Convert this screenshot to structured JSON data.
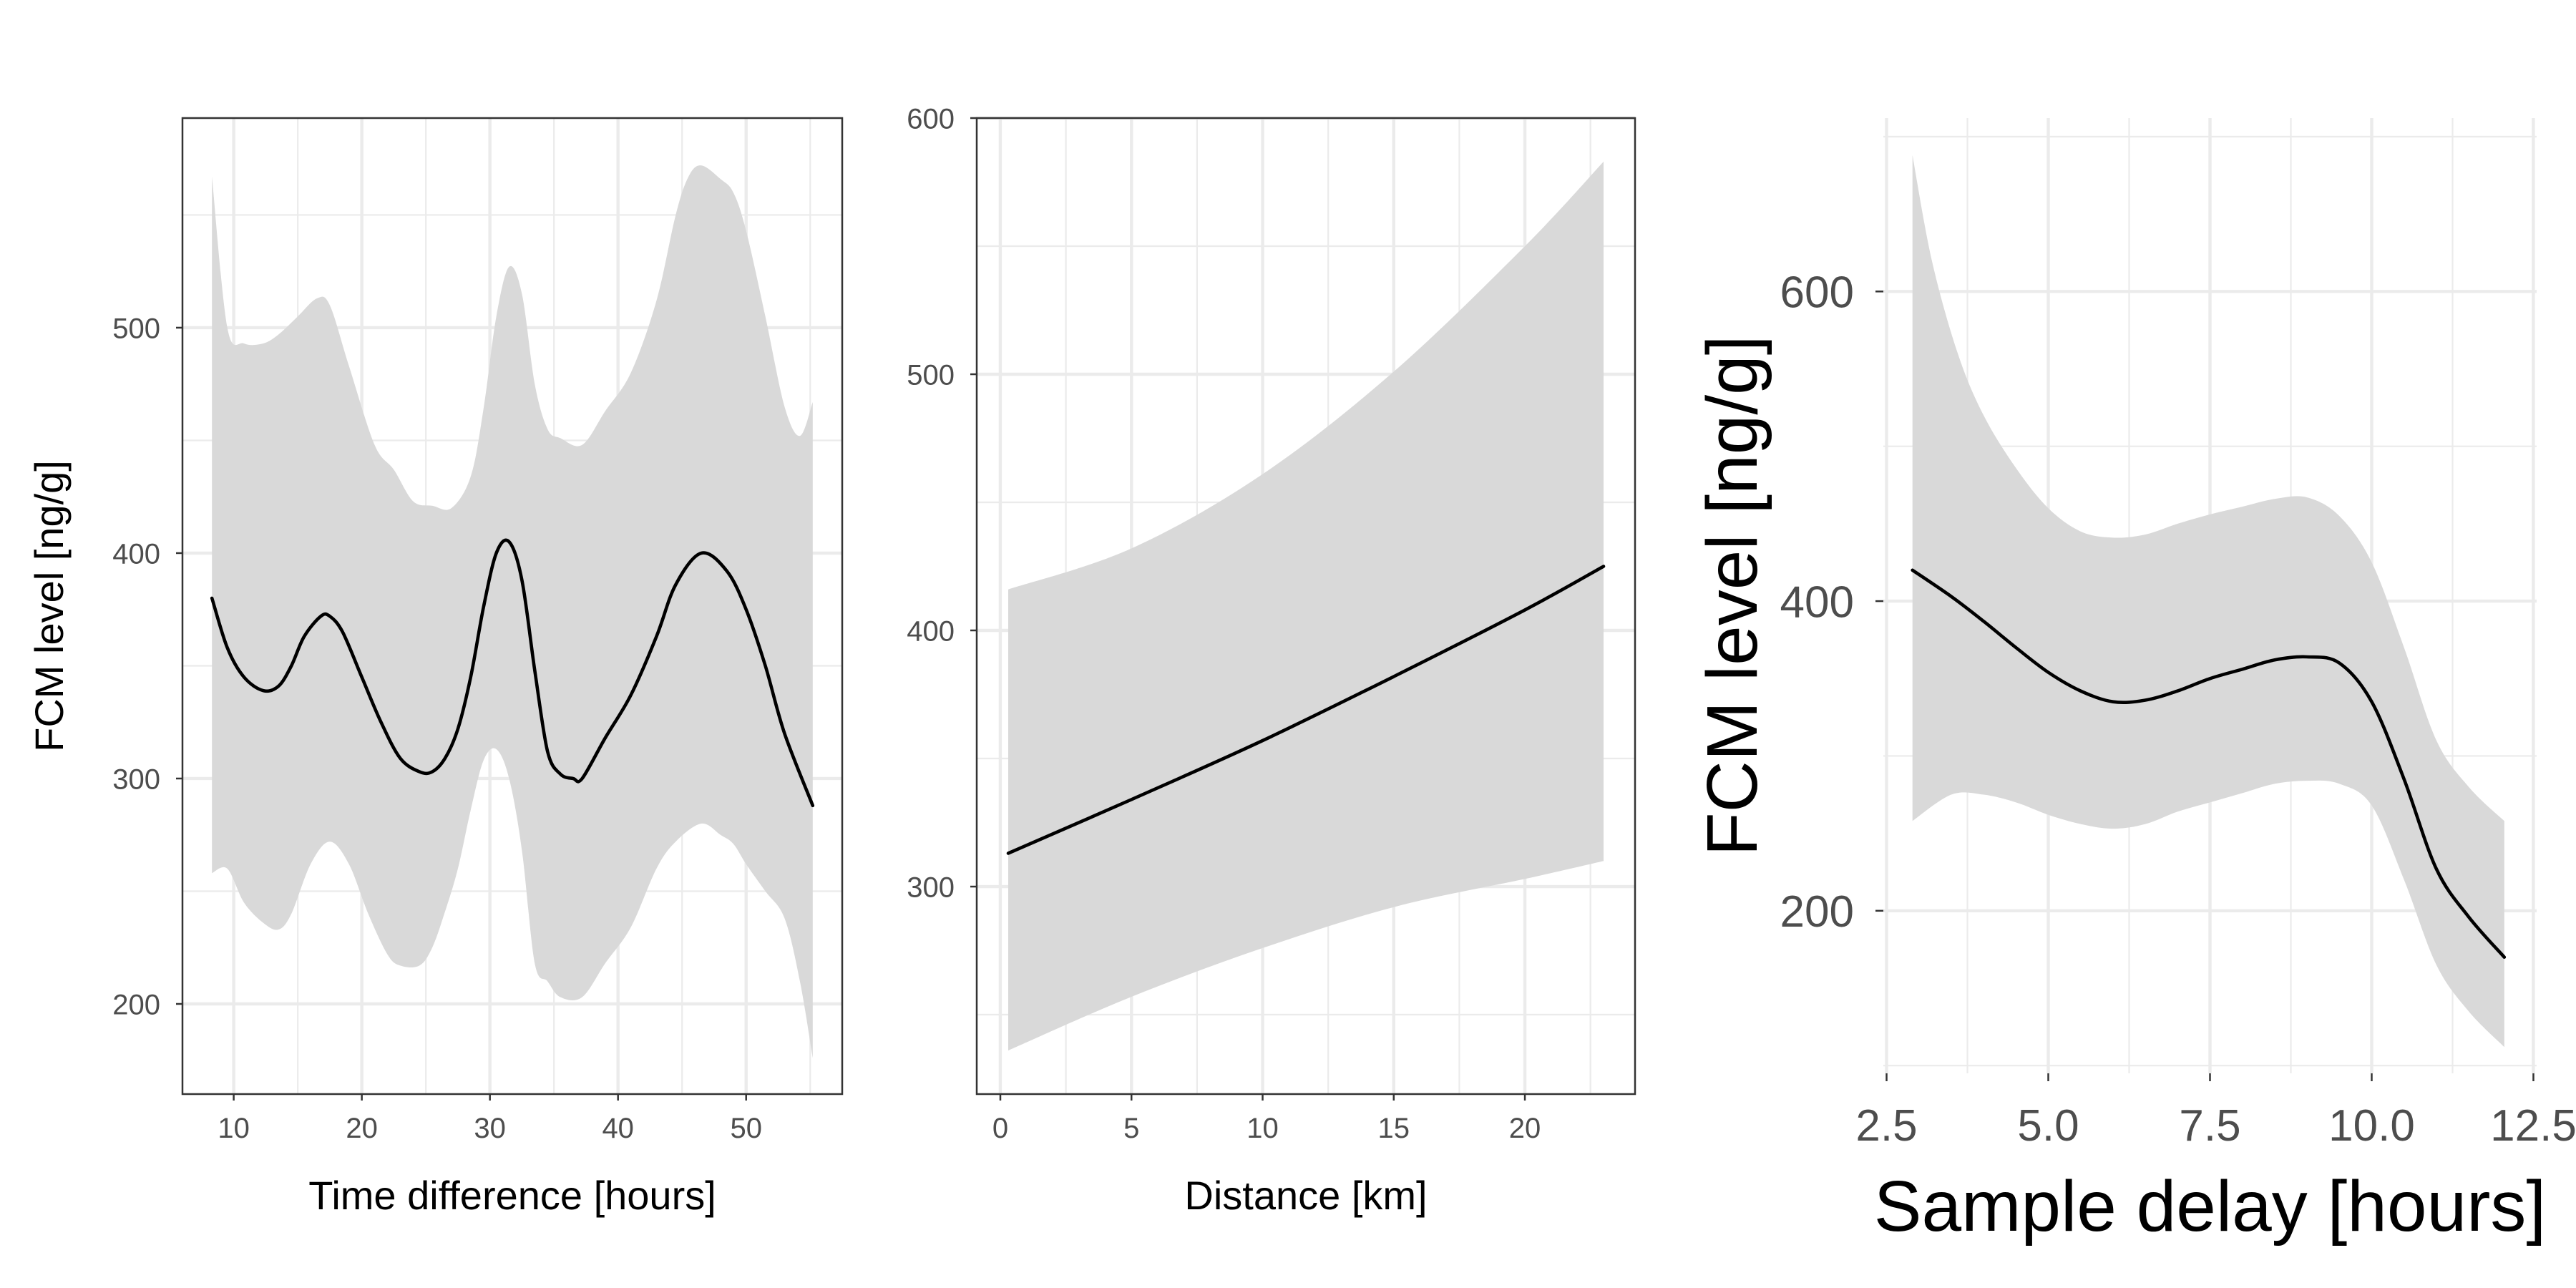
{
  "chart_data": [
    {
      "type": "line",
      "title": "",
      "xlabel": "Time difference [hours]",
      "ylabel": "FCM level [ng/g]",
      "xlim": [
        6,
        57.5
      ],
      "ylim": [
        160,
        593
      ],
      "xticks": [
        10,
        20,
        30,
        40,
        50
      ],
      "yticks": [
        200,
        300,
        400,
        500
      ],
      "grid": true,
      "panel_border": true,
      "series": [
        {
          "kind": "fit",
          "x": [
            8.3,
            9.5,
            10.8,
            12.3,
            13.5,
            14.5,
            15.5,
            16.8,
            17.5,
            18.5,
            20,
            21.5,
            23,
            24.5,
            25.5,
            26.5,
            27.5,
            28.5,
            29.5,
            30.5,
            31.5,
            32.5,
            33.5,
            34.5,
            35.5,
            36.5,
            37.2,
            39,
            41,
            43,
            44.5,
            46.5,
            48.5,
            50,
            51.5,
            53,
            55.2
          ],
          "y": [
            380,
            358,
            345,
            339,
            341,
            350,
            363,
            372,
            372,
            365,
            345,
            325,
            309,
            303,
            303,
            309,
            322,
            345,
            376,
            400,
            405,
            388,
            348,
            312,
            302,
            300,
            300,
            318,
            337,
            363,
            386,
            400,
            392,
            375,
            350,
            320,
            288
          ]
        },
        {
          "kind": "ci-upper",
          "x": [
            8.3,
            9.5,
            10.8,
            12.3,
            13.5,
            15,
            16.5,
            17.5,
            19,
            21,
            22.5,
            24,
            25.5,
            27,
            28.5,
            29.5,
            30.5,
            31.5,
            32.5,
            33.5,
            34.5,
            35.5,
            37.2,
            39,
            41,
            43,
            44.5,
            45.5,
            46.5,
            48,
            49,
            50,
            51.5,
            53,
            54.2,
            55.2
          ],
          "y": [
            567,
            500,
            493,
            493,
            497,
            505,
            513,
            510,
            483,
            448,
            437,
            423,
            421,
            420,
            434,
            464,
            505,
            527,
            515,
            475,
            455,
            451,
            448,
            463,
            480,
            512,
            550,
            567,
            572,
            566,
            560,
            543,
            505,
            465,
            452,
            467
          ]
        },
        {
          "kind": "ci-lower",
          "x": [
            8.3,
            9.5,
            10.8,
            12.3,
            13.5,
            14.5,
            16,
            17.5,
            19,
            20.5,
            22,
            23,
            24.5,
            25.5,
            26.5,
            27.5,
            28.5,
            29.5,
            30.5,
            31.5,
            32.5,
            33.5,
            34.5,
            35.5,
            37.2,
            39,
            41,
            43,
            44.5,
            46.5,
            48,
            49,
            50,
            51.5,
            53,
            54.2,
            55.2
          ],
          "y": [
            258,
            260,
            245,
            236,
            233,
            240,
            262,
            272,
            262,
            240,
            222,
            217,
            217,
            225,
            241,
            260,
            286,
            308,
            313,
            300,
            268,
            218,
            210,
            203,
            203,
            218,
            234,
            260,
            272,
            280,
            275,
            271,
            262,
            250,
            238,
            210,
            176
          ]
        }
      ]
    },
    {
      "type": "line",
      "title": "",
      "xlabel": "Distance [km]",
      "ylabel": "",
      "xlim": [
        -0.9,
        24.2
      ],
      "ylim": [
        219,
        600
      ],
      "xticks": [
        0,
        5,
        10,
        15,
        20
      ],
      "yticks": [
        300,
        400,
        500,
        600
      ],
      "grid": true,
      "panel_border": true,
      "series": [
        {
          "kind": "fit",
          "x": [
            0.3,
            5,
            10,
            15,
            20,
            23
          ],
          "y": [
            313,
            334,
            357,
            382,
            408,
            425
          ]
        },
        {
          "kind": "ci-upper",
          "x": [
            0.3,
            5,
            10,
            15,
            20,
            23
          ],
          "y": [
            416,
            432,
            461,
            501,
            550,
            583
          ]
        },
        {
          "kind": "ci-lower",
          "x": [
            0.3,
            5,
            10,
            15,
            20,
            23
          ],
          "y": [
            236,
            257,
            276,
            292,
            303,
            310
          ]
        }
      ]
    },
    {
      "type": "line",
      "title": "",
      "xlabel": "Sample delay [hours]",
      "ylabel": "FCM level [ng/g]",
      "xlim": [
        2.45,
        12.55
      ],
      "ylim": [
        95,
        712
      ],
      "xticks": [
        2.5,
        5.0,
        7.5,
        10.0,
        12.5
      ],
      "xtick_labels": [
        "2.5",
        "5.0",
        "7.5",
        "10.0",
        "12.5"
      ],
      "yticks": [
        200,
        400,
        600
      ],
      "grid": true,
      "panel_border": false,
      "series": [
        {
          "kind": "fit",
          "x": [
            2.9,
            3.5,
            4,
            4.5,
            5,
            5.5,
            6,
            6.5,
            7,
            7.5,
            8,
            8.5,
            9,
            9.5,
            10,
            10.5,
            11,
            11.5,
            12.05
          ],
          "y": [
            420,
            403,
            387,
            370,
            354,
            342,
            335,
            336,
            342,
            350,
            356,
            362,
            364,
            360,
            335,
            285,
            227,
            196,
            170
          ]
        },
        {
          "kind": "ci-upper",
          "x": [
            2.9,
            3.2,
            3.6,
            4,
            4.5,
            5,
            5.5,
            6,
            6.5,
            7,
            7.5,
            8,
            8.5,
            9,
            9.5,
            10,
            10.5,
            11,
            11.5,
            12.05
          ],
          "y": [
            688,
            620,
            560,
            520,
            486,
            460,
            445,
            441,
            443,
            450,
            456,
            461,
            466,
            467,
            455,
            425,
            370,
            310,
            280,
            258
          ]
        },
        {
          "kind": "ci-lower",
          "x": [
            2.9,
            3.5,
            4,
            4.5,
            5,
            5.5,
            6,
            6.5,
            7,
            7.5,
            8,
            8.5,
            9,
            9.5,
            10,
            10.5,
            11,
            11.5,
            12.05
          ],
          "y": [
            258,
            275,
            275,
            270,
            262,
            256,
            253,
            256,
            264,
            270,
            276,
            282,
            284,
            282,
            268,
            220,
            165,
            135,
            112
          ]
        }
      ]
    }
  ],
  "colors": {
    "ribbon": "#d9d9d9",
    "line": "#000000",
    "grid": "#ebebeb",
    "panel_border": "#333333",
    "tick_label": "#4d4d4d",
    "axis_title": "#000000"
  }
}
